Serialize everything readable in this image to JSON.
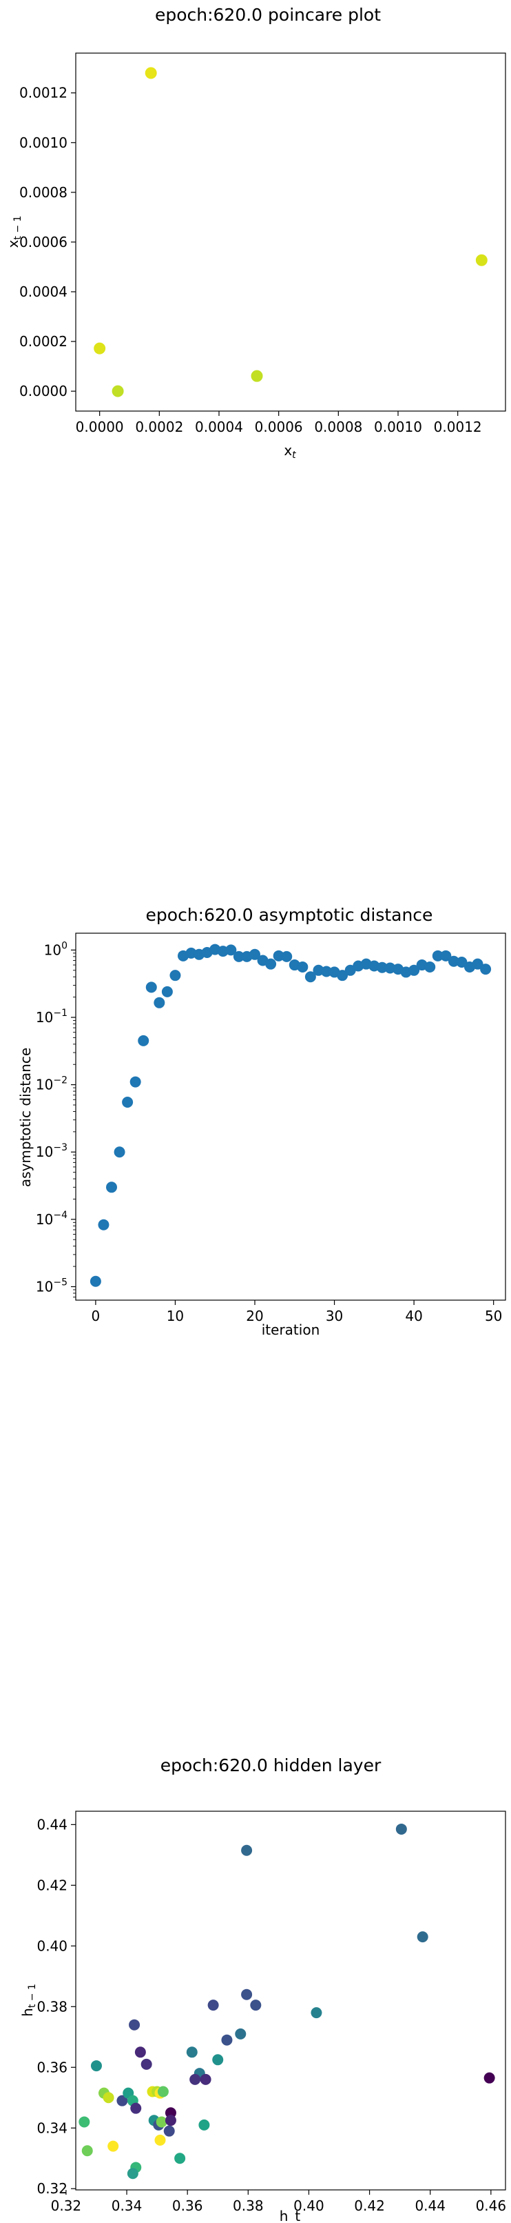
{
  "chart_data": [
    {
      "type": "scatter",
      "title": "epoch:620.0 poincare plot",
      "xlabel": "x_t",
      "ylabel": "x_{t-1}",
      "xlim": [
        -8e-05,
        0.00136
      ],
      "ylim": [
        -8e-05,
        0.00136
      ],
      "xticks": [
        "0.0000",
        "0.0002",
        "0.0004",
        "0.0006",
        "0.0008",
        "0.0010",
        "0.0012"
      ],
      "yticks": [
        "0.0000",
        "0.0002",
        "0.0004",
        "0.0006",
        "0.0008",
        "0.0010",
        "0.0012"
      ],
      "tick_values": [
        0,
        0.0002,
        0.0004,
        0.0006,
        0.0008,
        0.001,
        0.0012
      ],
      "points": [
        {
          "x": 0.0,
          "y": 0.000172,
          "color": "#dde318"
        },
        {
          "x": 0.000172,
          "y": 0.00128,
          "color": "#e7e419"
        },
        {
          "x": 0.00128,
          "y": 0.000527,
          "color": "#d8e219"
        },
        {
          "x": 0.000527,
          "y": 6.1e-05,
          "color": "#c2df23"
        },
        {
          "x": 6.1e-05,
          "y": 0.0,
          "color": "#c0df25"
        }
      ]
    },
    {
      "type": "scatter",
      "title": "epoch:620.0 asymptotic distance",
      "xlabel": "iteration",
      "ylabel": "asymptotic distance",
      "yscale": "log",
      "xlim": [
        -2.5,
        51.5
      ],
      "ylim_log10": [
        -5.2,
        0.25
      ],
      "xticks": [
        "0",
        "10",
        "20",
        "30",
        "40",
        "50"
      ],
      "xtick_values": [
        0,
        10,
        20,
        30,
        40,
        50
      ],
      "ytick_exponents": [
        -5,
        -4,
        -3,
        -2,
        -1,
        0
      ],
      "ytick_base": "10",
      "marker_color": "#1f77b4",
      "x": [
        0,
        1,
        2,
        3,
        4,
        5,
        6,
        7,
        8,
        9,
        10,
        11,
        12,
        13,
        14,
        15,
        16,
        17,
        18,
        19,
        20,
        21,
        22,
        23,
        24,
        25,
        26,
        27,
        28,
        29,
        30,
        31,
        32,
        33,
        34,
        35,
        36,
        37,
        38,
        39,
        40,
        41,
        42,
        43,
        44,
        45,
        46,
        47,
        48,
        49
      ],
      "y": [
        1.2e-05,
        8.3e-05,
        0.0003,
        0.001,
        0.0055,
        0.011,
        0.045,
        0.28,
        0.165,
        0.24,
        0.42,
        0.82,
        0.9,
        0.86,
        0.92,
        1.02,
        0.96,
        1.0,
        0.8,
        0.8,
        0.86,
        0.7,
        0.62,
        0.82,
        0.8,
        0.6,
        0.56,
        0.4,
        0.5,
        0.48,
        0.47,
        0.42,
        0.5,
        0.58,
        0.62,
        0.58,
        0.55,
        0.54,
        0.52,
        0.47,
        0.5,
        0.6,
        0.56,
        0.82,
        0.82,
        0.68,
        0.66,
        0.56,
        0.62,
        0.52
      ]
    },
    {
      "type": "scatter",
      "title": "epoch:620.0 hidden layer",
      "xlabel": "h_t",
      "ylabel": "h_{t-1}",
      "xlim": [
        0.3232,
        0.4648
      ],
      "ylim": [
        0.3196,
        0.4444
      ],
      "xticks": [
        "0.32",
        "0.34",
        "0.36",
        "0.38",
        "0.40",
        "0.42",
        "0.44",
        "0.46"
      ],
      "xtick_values": [
        0.32,
        0.34,
        0.36,
        0.38,
        0.4,
        0.42,
        0.44,
        0.46
      ],
      "yticks": [
        "0.32",
        "0.34",
        "0.36",
        "0.38",
        "0.40",
        "0.42",
        "0.44"
      ],
      "ytick_values": [
        0.32,
        0.34,
        0.36,
        0.38,
        0.4,
        0.42,
        0.44
      ],
      "points": [
        {
          "x": 0.4305,
          "y": 0.4385,
          "color": "#31688e"
        },
        {
          "x": 0.3795,
          "y": 0.4315,
          "color": "#31688e"
        },
        {
          "x": 0.4375,
          "y": 0.403,
          "color": "#2f6b8e"
        },
        {
          "x": 0.4595,
          "y": 0.3565,
          "color": "#440154"
        },
        {
          "x": 0.4025,
          "y": 0.378,
          "color": "#26828e"
        },
        {
          "x": 0.3795,
          "y": 0.384,
          "color": "#3b528b"
        },
        {
          "x": 0.3825,
          "y": 0.3805,
          "color": "#3b528b"
        },
        {
          "x": 0.3685,
          "y": 0.3805,
          "color": "#3e4a89"
        },
        {
          "x": 0.3775,
          "y": 0.371,
          "color": "#2c728e"
        },
        {
          "x": 0.373,
          "y": 0.369,
          "color": "#3b528b"
        },
        {
          "x": 0.3425,
          "y": 0.374,
          "color": "#3e4a89"
        },
        {
          "x": 0.3615,
          "y": 0.365,
          "color": "#287c8e"
        },
        {
          "x": 0.37,
          "y": 0.3625,
          "color": "#21918c"
        },
        {
          "x": 0.33,
          "y": 0.3605,
          "color": "#21918c"
        },
        {
          "x": 0.3445,
          "y": 0.365,
          "color": "#482878"
        },
        {
          "x": 0.3465,
          "y": 0.361,
          "color": "#46327e"
        },
        {
          "x": 0.364,
          "y": 0.358,
          "color": "#2a788e"
        },
        {
          "x": 0.3625,
          "y": 0.356,
          "color": "#46337e"
        },
        {
          "x": 0.366,
          "y": 0.356,
          "color": "#472d7b"
        },
        {
          "x": 0.326,
          "y": 0.342,
          "color": "#3dbc74"
        },
        {
          "x": 0.3325,
          "y": 0.3515,
          "color": "#86d549"
        },
        {
          "x": 0.334,
          "y": 0.35,
          "color": "#c8e020"
        },
        {
          "x": 0.3385,
          "y": 0.349,
          "color": "#3e4a89"
        },
        {
          "x": 0.3405,
          "y": 0.3515,
          "color": "#1f9e89"
        },
        {
          "x": 0.342,
          "y": 0.349,
          "color": "#27ad81"
        },
        {
          "x": 0.343,
          "y": 0.3465,
          "color": "#46307e"
        },
        {
          "x": 0.3485,
          "y": 0.352,
          "color": "#dde318"
        },
        {
          "x": 0.35,
          "y": 0.352,
          "color": "#b5de2b"
        },
        {
          "x": 0.351,
          "y": 0.3515,
          "color": "#fde725"
        },
        {
          "x": 0.352,
          "y": 0.352,
          "color": "#5ec962"
        },
        {
          "x": 0.349,
          "y": 0.3425,
          "color": "#21918c"
        },
        {
          "x": 0.3505,
          "y": 0.341,
          "color": "#3b528b"
        },
        {
          "x": 0.3515,
          "y": 0.342,
          "color": "#7ad151"
        },
        {
          "x": 0.3545,
          "y": 0.345,
          "color": "#440154"
        },
        {
          "x": 0.3545,
          "y": 0.3425,
          "color": "#482475"
        },
        {
          "x": 0.354,
          "y": 0.339,
          "color": "#3e4a89"
        },
        {
          "x": 0.3655,
          "y": 0.341,
          "color": "#20a386"
        },
        {
          "x": 0.351,
          "y": 0.336,
          "color": "#fde725"
        },
        {
          "x": 0.3355,
          "y": 0.334,
          "color": "#fde725"
        },
        {
          "x": 0.327,
          "y": 0.3325,
          "color": "#6ece58"
        },
        {
          "x": 0.343,
          "y": 0.327,
          "color": "#35b779"
        },
        {
          "x": 0.342,
          "y": 0.325,
          "color": "#2a9d8c"
        },
        {
          "x": 0.3575,
          "y": 0.33,
          "color": "#22a884"
        }
      ]
    }
  ]
}
